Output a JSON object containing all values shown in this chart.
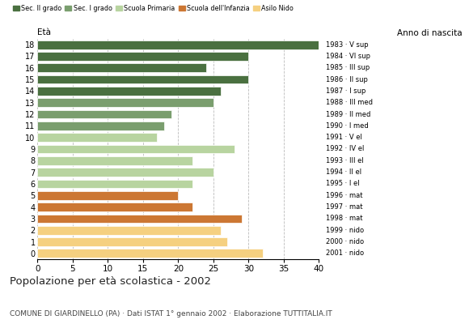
{
  "ages": [
    18,
    17,
    16,
    15,
    14,
    13,
    12,
    11,
    10,
    9,
    8,
    7,
    6,
    5,
    4,
    3,
    2,
    1,
    0
  ],
  "values": [
    40,
    30,
    24,
    30,
    26,
    25,
    19,
    18,
    17,
    28,
    22,
    25,
    22,
    20,
    22,
    29,
    26,
    27,
    32
  ],
  "right_labels": [
    "1983 · V sup",
    "1984 · VI sup",
    "1985 · III sup",
    "1986 · II sup",
    "1987 · I sup",
    "1988 · III med",
    "1989 · II med",
    "1990 · I med",
    "1991 · V el",
    "1992 · IV el",
    "1993 · III el",
    "1994 · II el",
    "1995 · I el",
    "1996 · mat",
    "1997 · mat",
    "1998 · mat",
    "1999 · nido",
    "2000 · nido",
    "2001 · nido"
  ],
  "bar_colors": [
    "#4a7040",
    "#4a7040",
    "#4a7040",
    "#4a7040",
    "#4a7040",
    "#7a9e6e",
    "#7a9e6e",
    "#7a9e6e",
    "#b8d4a0",
    "#b8d4a0",
    "#b8d4a0",
    "#b8d4a0",
    "#b8d4a0",
    "#cc7733",
    "#cc7733",
    "#cc7733",
    "#f5d080",
    "#f5d080",
    "#f5d080"
  ],
  "legend_labels": [
    "Sec. II grado",
    "Sec. I grado",
    "Scuola Primaria",
    "Scuola dell'Infanzia",
    "Asilo Nido"
  ],
  "legend_colors": [
    "#4a7040",
    "#7a9e6e",
    "#b8d4a0",
    "#cc7733",
    "#f5d080"
  ],
  "title": "Popolazione per età scolastica - 2002",
  "subtitle": "COMUNE DI GIARDINELLO (PA) · Dati ISTAT 1° gennaio 2002 · Elaborazione TUTTITALIA.IT",
  "xlabel_left": "Età",
  "xlabel_right": "Anno di nascita",
  "xlim": [
    0,
    40
  ],
  "xticks": [
    0,
    5,
    10,
    15,
    20,
    25,
    30,
    35,
    40
  ],
  "grid_color": "#bbbbbb",
  "bg_color": "#ffffff"
}
